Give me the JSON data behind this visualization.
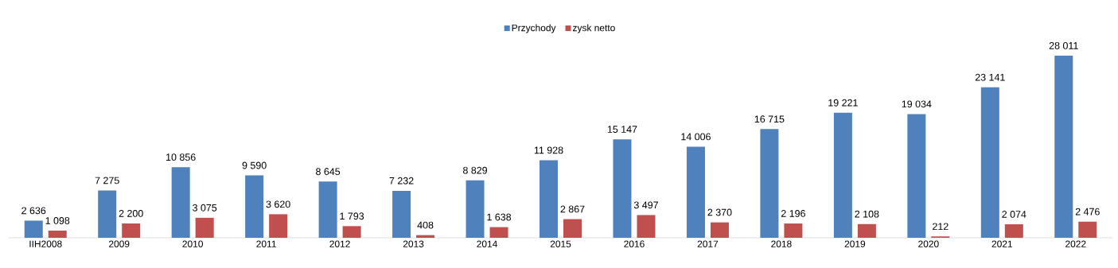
{
  "chart_data": {
    "type": "bar",
    "categories": [
      "IIH2008",
      "2009",
      "2010",
      "2011",
      "2012",
      "2013",
      "2014",
      "2015",
      "2016",
      "2017",
      "2018",
      "2019",
      "2020",
      "2021",
      "2022"
    ],
    "series": [
      {
        "name": "Przychody",
        "color": "#4f81bd",
        "values": [
          2636,
          7275,
          10856,
          9590,
          8645,
          7232,
          8829,
          11928,
          15147,
          14006,
          16715,
          19221,
          19034,
          23141,
          28011
        ],
        "value_labels": [
          "2 636",
          "7 275",
          "10 856",
          "9 590",
          "8 645",
          "7 232",
          "8 829",
          "11 928",
          "15 147",
          "14 006",
          "16 715",
          "19 221",
          "19 034",
          "23 141",
          "28 011"
        ]
      },
      {
        "name": "zysk netto",
        "color": "#c0504d",
        "values": [
          1098,
          2200,
          3075,
          3620,
          1793,
          408,
          1638,
          2867,
          3497,
          2370,
          2196,
          2108,
          212,
          2074,
          2476
        ],
        "value_labels": [
          "1 098",
          "2 200",
          "3 075",
          "3 620",
          "1 793",
          "408",
          "1 638",
          "2 867",
          "3 497",
          "2 370",
          "2 196",
          "2 108",
          "212",
          "2 074",
          "2 476"
        ]
      }
    ],
    "legend": "top"
  }
}
